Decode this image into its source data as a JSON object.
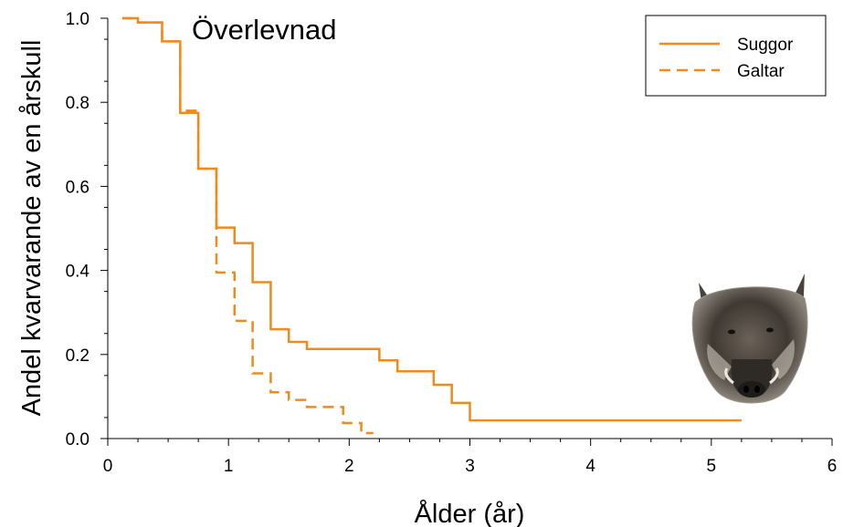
{
  "chart_data": {
    "type": "line",
    "title": "Överlevnad",
    "xlabel": "Ålder (år)",
    "ylabel": "Andel kvarvarande av en årskull",
    "xlim": [
      0,
      6
    ],
    "ylim": [
      0,
      1
    ],
    "x_ticks": [
      "0",
      "1",
      "2",
      "3",
      "4",
      "5",
      "6"
    ],
    "y_ticks": [
      "0.0",
      "0.2",
      "0.4",
      "0.6",
      "0.8",
      "1.0"
    ],
    "grid": false,
    "legend_position": "top-right",
    "series": [
      {
        "name": "Suggor",
        "style": "solid",
        "color": "#f08a1c",
        "x": [
          0.12,
          0.25,
          0.45,
          0.6,
          0.75,
          0.9,
          1.05,
          1.2,
          1.35,
          1.5,
          1.65,
          2.25,
          2.4,
          2.7,
          2.85,
          3.0,
          5.25
        ],
        "y": [
          1.0,
          0.99,
          0.945,
          0.775,
          0.642,
          0.502,
          0.465,
          0.372,
          0.26,
          0.23,
          0.213,
          0.186,
          0.16,
          0.128,
          0.085,
          0.043,
          0.043
        ]
      },
      {
        "name": "Galtar",
        "style": "dashed",
        "color": "#f08a1c",
        "x": [
          0.12,
          0.25,
          0.45,
          0.6,
          0.75,
          0.9,
          1.05,
          1.2,
          1.35,
          1.5,
          1.65,
          1.95,
          2.1,
          2.2
        ],
        "y": [
          1.0,
          0.99,
          0.945,
          0.78,
          0.642,
          0.395,
          0.28,
          0.155,
          0.11,
          0.092,
          0.075,
          0.037,
          0.013,
          0.013
        ]
      }
    ]
  },
  "image": {
    "subject": "wild-boar-head"
  }
}
